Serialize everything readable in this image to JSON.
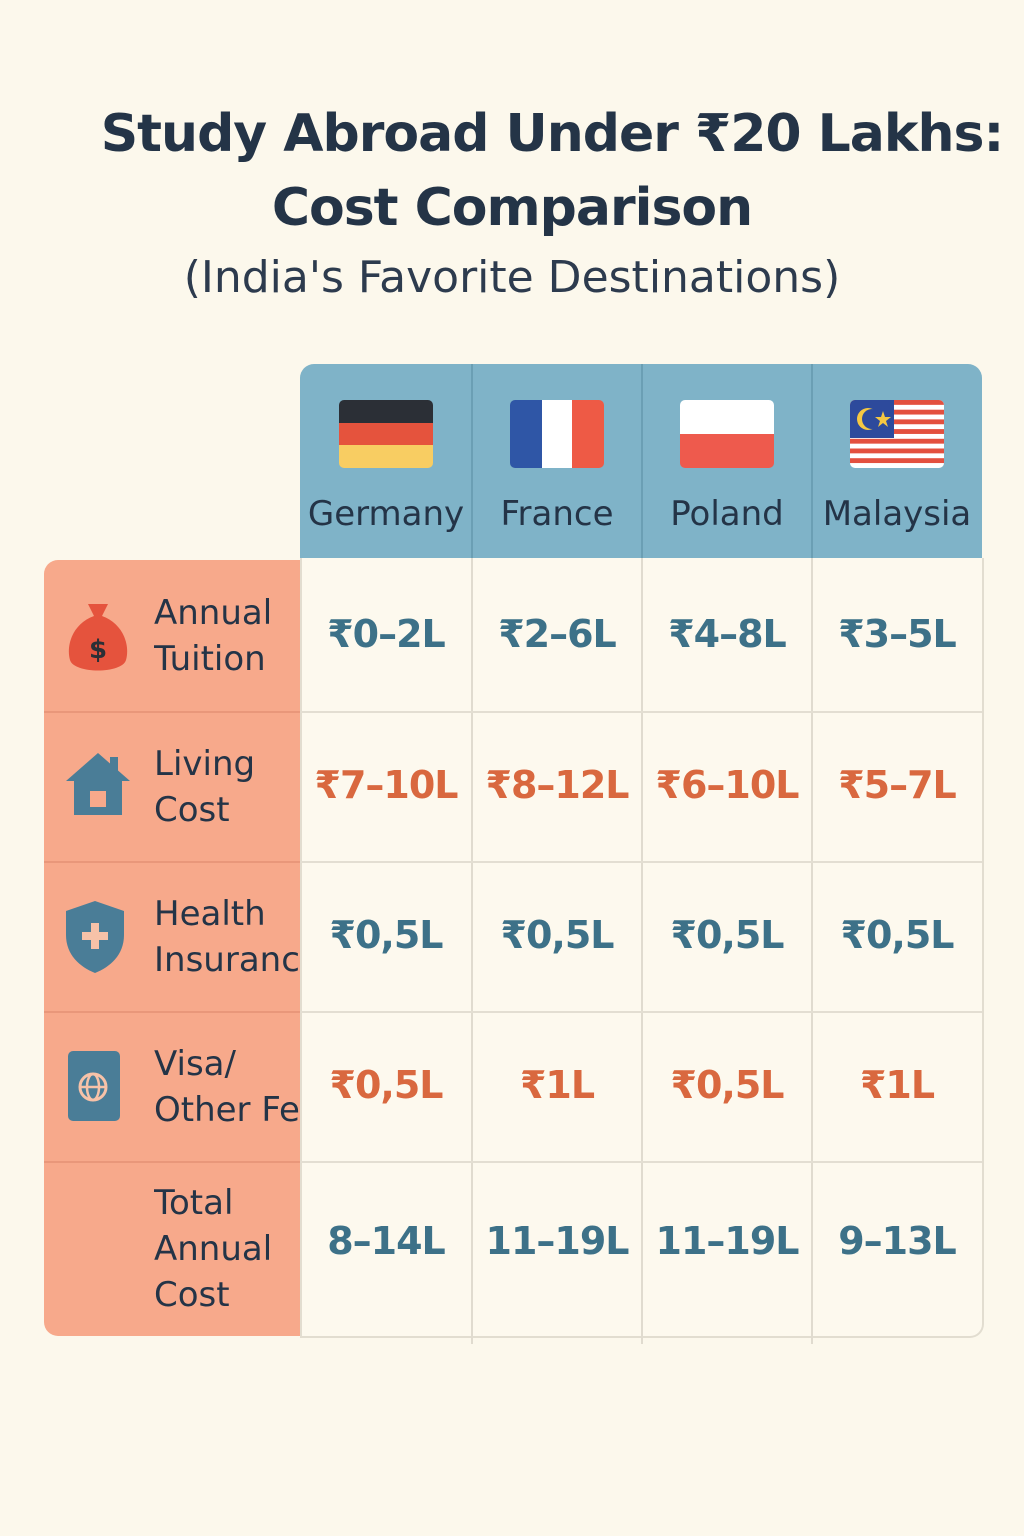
{
  "title_line_1": "Study Abroad Under ₹20 Lakhs:",
  "title_line_2": "Cost Comparison",
  "subtitle": "(India's Favorite Destinations)",
  "colors": {
    "background": "#fcf8ec",
    "header": "#7fb3c8",
    "label_column": "#f7a98b",
    "value_blue": "#3d7188",
    "value_orange": "#d9683f"
  },
  "chart_data": {
    "type": "table",
    "columns": [
      "Germany",
      "France",
      "Poland",
      "Malaysia"
    ],
    "flags": [
      "germany-flag-icon",
      "france-flag-icon",
      "poland-flag-icon",
      "malaysia-flag-icon"
    ],
    "rows": [
      {
        "label": "Annual\nTuition",
        "icon": "money-bag-icon",
        "color": "blue",
        "values": [
          "₹0–2L",
          "₹2–6L",
          "₹4–8L",
          "₹3–5L"
        ]
      },
      {
        "label": "Living\nCost",
        "icon": "house-icon",
        "color": "orange",
        "values": [
          "₹7–10L",
          "₹8–12L",
          "₹6–10L",
          "₹5–7L"
        ]
      },
      {
        "label": "Health\nInsuranc",
        "icon": "shield-plus-icon",
        "color": "blue",
        "values": [
          "₹0,5L",
          "₹0,5L",
          "₹0,5L",
          "₹0,5L"
        ]
      },
      {
        "label": "Visa/\nOther Fe",
        "icon": "passport-icon",
        "color": "orange",
        "values": [
          "₹0,5L",
          "₹1L",
          "₹0,5L",
          "₹1L"
        ]
      },
      {
        "label": "Total\nAnnual\nCost",
        "icon": "",
        "color": "blue",
        "values": [
          "8–14L",
          "11–19L",
          "11–19L",
          "9–13L"
        ]
      }
    ]
  }
}
